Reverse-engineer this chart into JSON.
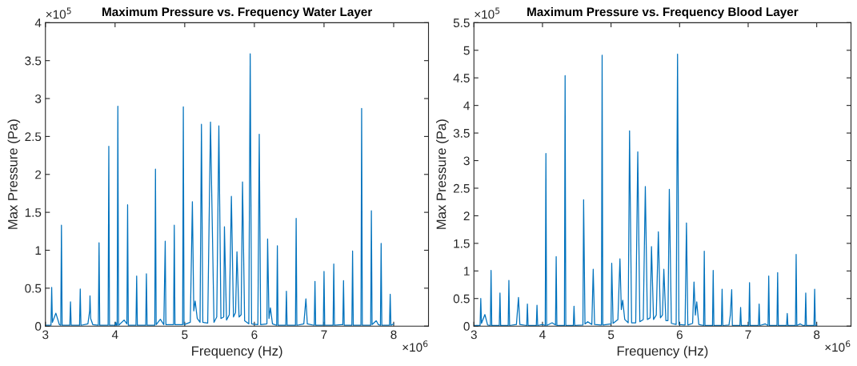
{
  "chart_data": [
    {
      "type": "line",
      "title": "Maximum Pressure vs. Frequency Water Layer",
      "xlabel": "Frequency (Hz)",
      "ylabel": "Max Pressure (Pa)",
      "annotations": [
        "×10$^{5}$",
        "×10$^{6}$"
      ],
      "series": [
        {
          "color": "#0072bd",
          "x": [
            3.0,
            3.08,
            3.09,
            3.1,
            3.15,
            3.2,
            3.22,
            3.23,
            3.24,
            3.35,
            3.36,
            3.37,
            3.49,
            3.5,
            3.51,
            3.61,
            3.635,
            3.64,
            3.65,
            3.68,
            3.76,
            3.77,
            3.78,
            3.9,
            3.91,
            3.92,
            4.0,
            4.01,
            4.02,
            4.03,
            4.04,
            4.05,
            4.13,
            4.17,
            4.18,
            4.19,
            4.3,
            4.31,
            4.32,
            4.44,
            4.45,
            4.46,
            4.57,
            4.58,
            4.59,
            4.65,
            4.7,
            4.72,
            4.73,
            4.84,
            4.85,
            4.86,
            4.97,
            4.98,
            4.99,
            5.08,
            5.11,
            5.13,
            5.15,
            5.18,
            5.22,
            5.24,
            5.26,
            5.33,
            5.37,
            5.42,
            5.46,
            5.49,
            5.52,
            5.56,
            5.57,
            5.6,
            5.64,
            5.67,
            5.7,
            5.73,
            5.75,
            5.78,
            5.81,
            5.83,
            5.86,
            5.92,
            5.94,
            5.96,
            6.05,
            6.07,
            6.09,
            6.18,
            6.19,
            6.21,
            6.23,
            6.26,
            6.32,
            6.33,
            6.34,
            6.45,
            6.46,
            6.47,
            6.59,
            6.6,
            6.61,
            6.71,
            6.74,
            6.76,
            6.86,
            6.87,
            6.88,
            6.99,
            7.0,
            7.01,
            7.13,
            7.14,
            7.15,
            7.25,
            7.27,
            7.28,
            7.29,
            7.4,
            7.41,
            7.42,
            7.53,
            7.54,
            7.55,
            7.67,
            7.68,
            7.69,
            7.75,
            7.78,
            7.81,
            7.82,
            7.83,
            7.94,
            7.95,
            7.96,
            8.0
          ],
          "values": [
            0.01,
            0.01,
            0.51,
            0.05,
            0.17,
            0.02,
            0.01,
            1.33,
            0.01,
            0.01,
            0.32,
            0.01,
            0.01,
            0.49,
            0.01,
            0.03,
            0.2,
            0.4,
            0.1,
            0.02,
            0.01,
            1.1,
            0.01,
            0.01,
            2.37,
            0.01,
            0.01,
            0.05,
            0.01,
            0.01,
            2.9,
            0.01,
            0.08,
            0.03,
            1.6,
            0.01,
            0.01,
            0.66,
            0.01,
            0.01,
            0.69,
            0.01,
            0.01,
            2.07,
            0.02,
            0.09,
            0.02,
            1.12,
            0.02,
            0.02,
            1.33,
            0.02,
            0.02,
            2.89,
            0.02,
            0.05,
            1.64,
            0.2,
            0.33,
            0.1,
            0.05,
            2.66,
            0.05,
            0.04,
            2.69,
            0.05,
            0.12,
            2.64,
            0.1,
            0.12,
            1.31,
            0.08,
            0.15,
            1.71,
            0.12,
            0.18,
            0.98,
            0.12,
            0.15,
            1.9,
            0.07,
            0.03,
            3.59,
            0.03,
            0.02,
            2.53,
            0.02,
            0.03,
            1.15,
            0.1,
            0.24,
            0.03,
            0.01,
            1.06,
            0.01,
            0.01,
            0.46,
            0.01,
            0.01,
            1.42,
            0.01,
            0.03,
            0.36,
            0.03,
            0.01,
            0.59,
            0.01,
            0.01,
            0.72,
            0.01,
            0.01,
            0.82,
            0.01,
            0.02,
            0.02,
            0.6,
            0.01,
            0.01,
            0.99,
            0.01,
            0.01,
            2.87,
            0.01,
            0.01,
            1.52,
            0.02,
            0.07,
            0.02,
            0.01,
            1.09,
            0.01,
            0.01,
            0.42,
            0.01,
            0.03
          ]
        }
      ],
      "xlim": [
        3,
        8.5
      ],
      "xticks": [
        3,
        4,
        5,
        6,
        7,
        8
      ],
      "ylim": [
        0,
        4
      ],
      "yticks": [
        0,
        0.5,
        1,
        1.5,
        2,
        2.5,
        3,
        3.5,
        4
      ],
      "grid": false,
      "legend": false
    },
    {
      "type": "line",
      "title": "Maximum Pressure vs. Frequency Blood Layer",
      "xlabel": "Frequency (Hz)",
      "ylabel": "Max Pressure (Pa)",
      "annotations": [
        "×10$^{5}$",
        "×10$^{6}$"
      ],
      "series": [
        {
          "color": "#0072bd",
          "x": [
            3.0,
            3.09,
            3.1,
            3.11,
            3.16,
            3.2,
            3.24,
            3.25,
            3.26,
            3.37,
            3.38,
            3.39,
            3.5,
            3.51,
            3.52,
            3.62,
            3.65,
            3.67,
            3.77,
            3.78,
            3.79,
            3.91,
            3.92,
            3.93,
            4.0,
            4.04,
            4.05,
            4.06,
            4.14,
            4.19,
            4.2,
            4.21,
            4.32,
            4.33,
            4.34,
            4.45,
            4.46,
            4.47,
            4.59,
            4.6,
            4.62,
            4.66,
            4.72,
            4.74,
            4.76,
            4.86,
            4.87,
            4.88,
            5.0,
            5.01,
            5.03,
            5.1,
            5.13,
            5.15,
            5.17,
            5.2,
            5.25,
            5.27,
            5.3,
            5.36,
            5.39,
            5.42,
            5.47,
            5.5,
            5.53,
            5.57,
            5.59,
            5.62,
            5.66,
            5.69,
            5.72,
            5.75,
            5.77,
            5.8,
            5.83,
            5.85,
            5.88,
            5.95,
            5.97,
            5.99,
            6.08,
            6.1,
            6.12,
            6.19,
            6.21,
            6.23,
            6.25,
            6.28,
            6.35,
            6.36,
            6.37,
            6.48,
            6.49,
            6.5,
            6.61,
            6.62,
            6.63,
            6.72,
            6.74,
            6.76,
            6.77,
            6.88,
            6.89,
            6.9,
            7.01,
            7.02,
            7.03,
            7.15,
            7.16,
            7.17,
            7.25,
            7.29,
            7.3,
            7.31,
            7.42,
            7.43,
            7.44,
            7.56,
            7.57,
            7.58,
            7.69,
            7.7,
            7.71,
            7.76,
            7.8,
            7.83,
            7.84,
            7.85,
            7.96,
            7.97,
            7.98,
            8.0
          ],
          "values": [
            0.01,
            0.01,
            0.5,
            0.05,
            0.21,
            0.02,
            0.01,
            1.01,
            0.01,
            0.01,
            0.6,
            0.01,
            0.01,
            0.83,
            0.01,
            0.03,
            0.52,
            0.03,
            0.01,
            0.4,
            0.01,
            0.01,
            0.38,
            0.01,
            0.03,
            0.01,
            3.13,
            0.01,
            0.06,
            0.02,
            1.26,
            0.01,
            0.01,
            4.54,
            0.01,
            0.01,
            0.36,
            0.01,
            0.02,
            2.29,
            0.04,
            0.08,
            0.03,
            1.03,
            0.03,
            0.02,
            4.91,
            0.02,
            0.04,
            1.14,
            0.05,
            0.12,
            1.22,
            0.3,
            0.47,
            0.12,
            0.06,
            3.54,
            0.06,
            0.06,
            3.16,
            0.08,
            0.12,
            2.53,
            0.12,
            0.15,
            1.44,
            0.12,
            0.2,
            1.71,
            0.15,
            0.2,
            1.03,
            0.1,
            0.1,
            2.48,
            0.05,
            0.03,
            4.93,
            0.03,
            0.02,
            1.87,
            0.02,
            0.05,
            0.8,
            0.2,
            0.44,
            0.03,
            0.01,
            1.36,
            0.01,
            0.01,
            1.01,
            0.01,
            0.01,
            0.67,
            0.01,
            0.02,
            0.2,
            0.66,
            0.01,
            0.01,
            0.34,
            0.01,
            0.01,
            0.79,
            0.01,
            0.01,
            0.4,
            0.01,
            0.04,
            0.01,
            0.91,
            0.01,
            0.01,
            0.97,
            0.01,
            0.01,
            0.23,
            0.01,
            0.01,
            1.3,
            0.01,
            0.04,
            0.01,
            0.01,
            0.6,
            0.01,
            0.01,
            0.67,
            0.01,
            0.02
          ]
        }
      ],
      "xlim": [
        3,
        8.5
      ],
      "xticks": [
        3,
        4,
        5,
        6,
        7,
        8
      ],
      "ylim": [
        0,
        5.5
      ],
      "yticks": [
        0,
        0.5,
        1,
        1.5,
        2,
        2.5,
        3,
        3.5,
        4,
        4.5,
        5,
        5.5
      ],
      "grid": false,
      "legend": false
    }
  ]
}
